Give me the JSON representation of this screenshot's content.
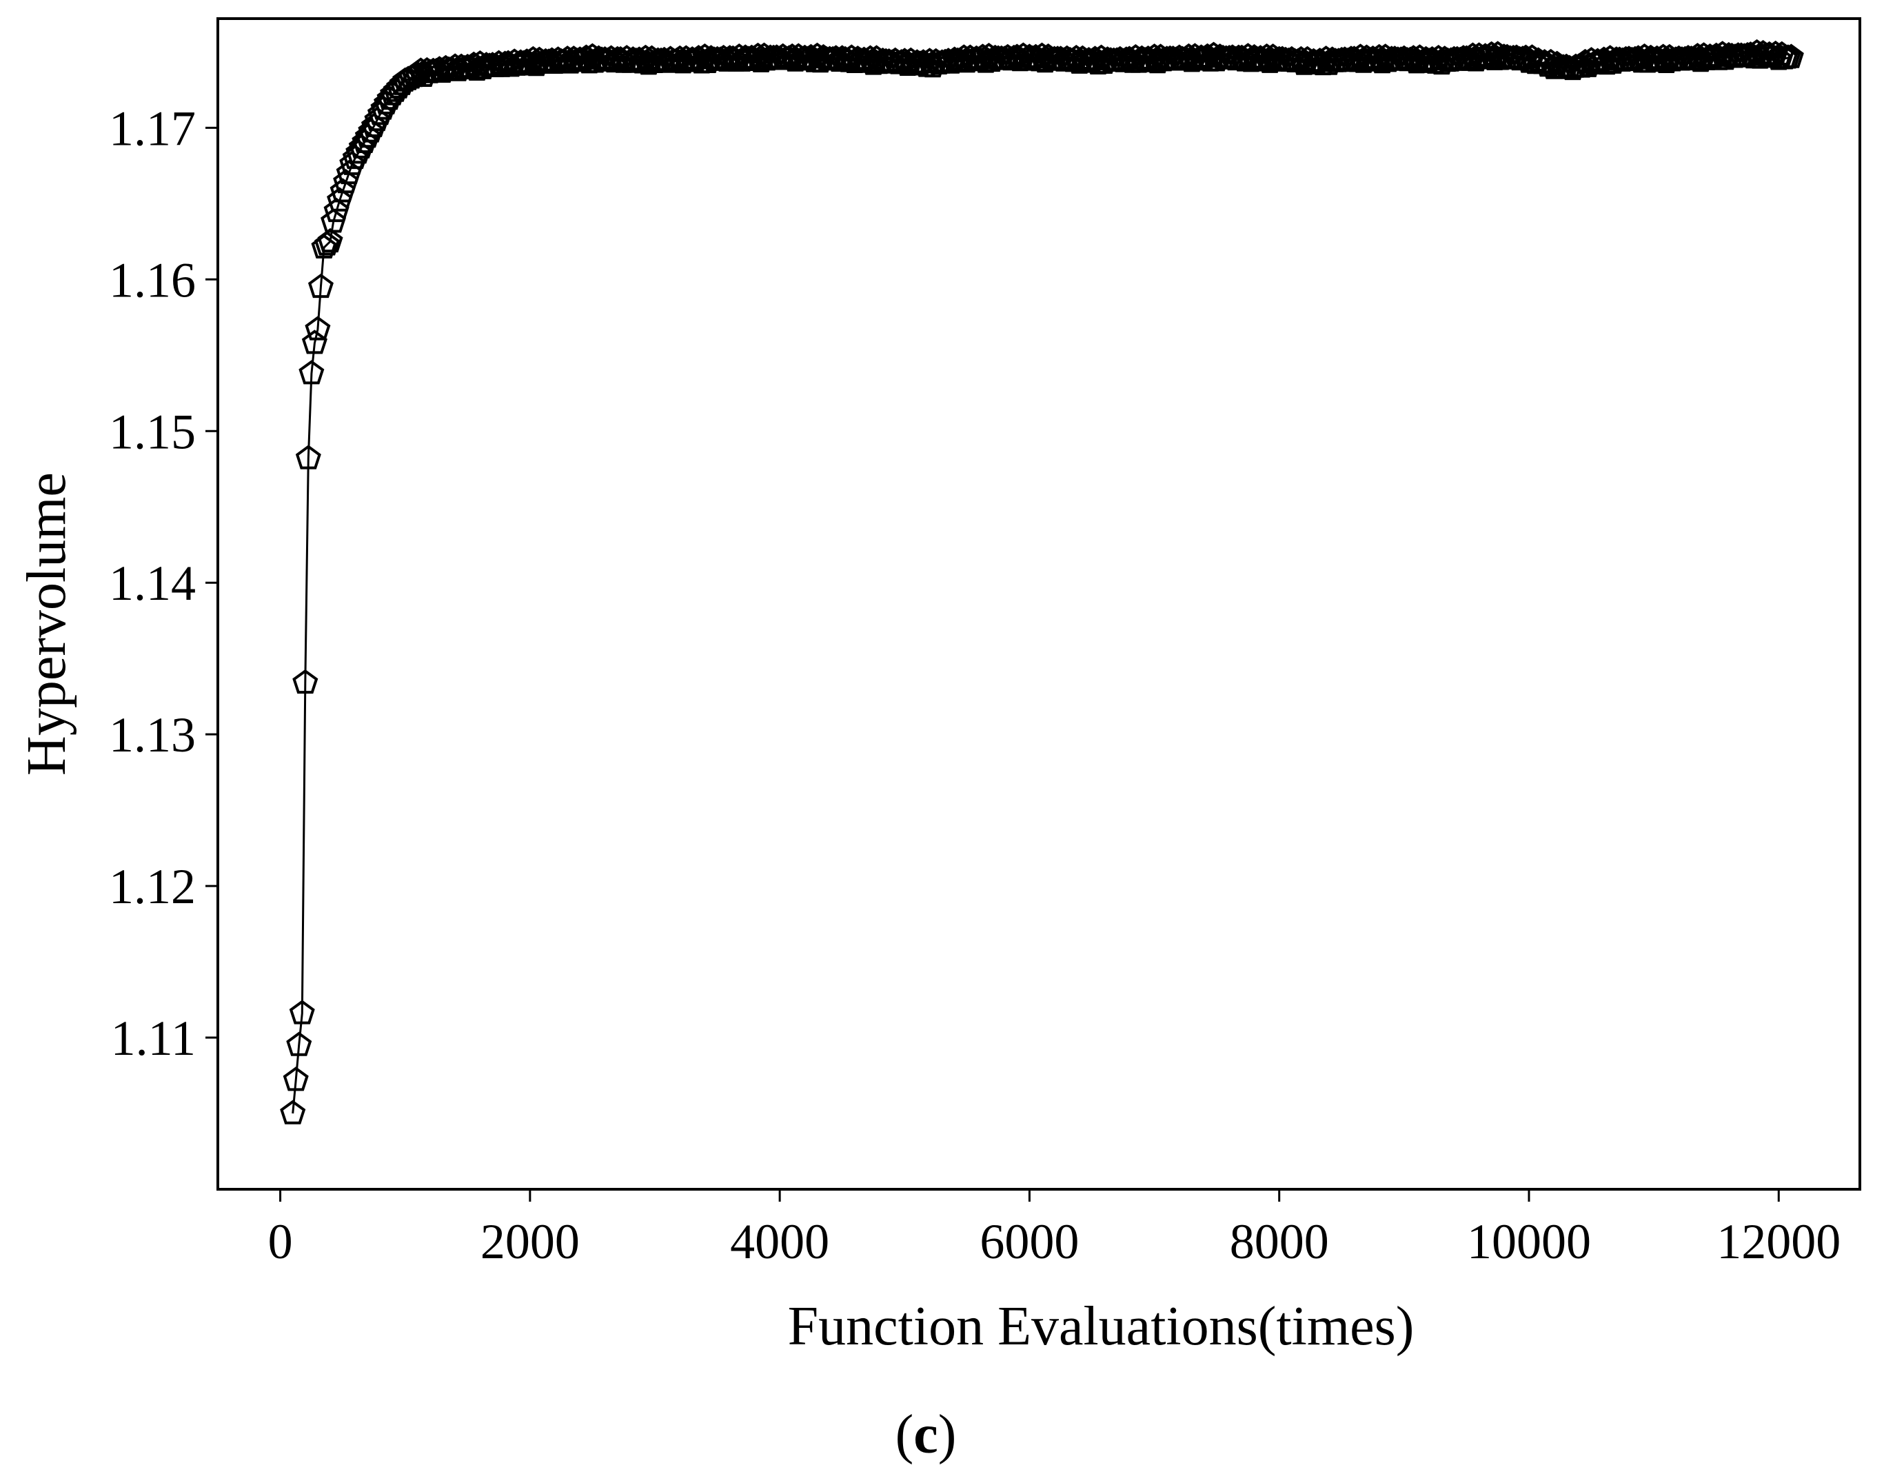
{
  "chart_data": {
    "type": "line",
    "title": "",
    "xlabel": "Function Evaluations(times)",
    "ylabel": "Hypervolume",
    "panel_label": {
      "open": "(",
      "letter": "c",
      "close": ")"
    },
    "xlim": [
      -500,
      12650
    ],
    "ylim": [
      1.1,
      1.1772
    ],
    "xticks": [
      0,
      2000,
      4000,
      6000,
      8000,
      10000,
      12000
    ],
    "xtick_labels": [
      "0",
      "2000",
      "4000",
      "6000",
      "8000",
      "10000",
      "12000"
    ],
    "yticks": [
      1.11,
      1.12,
      1.13,
      1.14,
      1.15,
      1.16,
      1.17
    ],
    "ytick_labels": [
      "1.11",
      "1.12",
      "1.13",
      "1.14",
      "1.15",
      "1.16",
      "1.17"
    ],
    "grid": false,
    "marker": "pentagon-open",
    "line_color": "#000000",
    "series": [
      {
        "x_start": 100,
        "x_step": 25,
        "x_end": 12100,
        "early_points": [
          [
            100,
            1.105
          ],
          [
            125,
            1.1072
          ],
          [
            150,
            1.1095
          ],
          [
            175,
            1.1116
          ],
          [
            200,
            1.1334
          ],
          [
            225,
            1.1482
          ],
          [
            250,
            1.1538
          ],
          [
            275,
            1.1558
          ],
          [
            300,
            1.1567
          ],
          [
            325,
            1.1595
          ],
          [
            350,
            1.1621
          ],
          [
            375,
            1.1623
          ],
          [
            400,
            1.1625
          ],
          [
            425,
            1.1638
          ],
          [
            450,
            1.1645
          ],
          [
            475,
            1.1652
          ],
          [
            500,
            1.1658
          ],
          [
            525,
            1.1664
          ],
          [
            550,
            1.167
          ],
          [
            575,
            1.1676
          ],
          [
            600,
            1.168
          ],
          [
            650,
            1.1687
          ],
          [
            700,
            1.1694
          ],
          [
            750,
            1.1701
          ],
          [
            800,
            1.1709
          ],
          [
            850,
            1.1716
          ],
          [
            900,
            1.1722
          ],
          [
            1000,
            1.1731
          ],
          [
            1100,
            1.1735
          ],
          [
            1200,
            1.1737
          ],
          [
            1400,
            1.1739
          ],
          [
            1700,
            1.1741
          ],
          [
            2000,
            1.1743
          ],
          [
            2500,
            1.1745
          ],
          [
            3000,
            1.1744
          ],
          [
            3500,
            1.1745
          ],
          [
            4000,
            1.1746
          ],
          [
            4500,
            1.1745
          ],
          [
            5000,
            1.1743
          ],
          [
            5200,
            1.1742
          ],
          [
            5500,
            1.1745
          ],
          [
            6000,
            1.1746
          ],
          [
            6500,
            1.1744
          ],
          [
            7000,
            1.1745
          ],
          [
            7500,
            1.1746
          ],
          [
            8000,
            1.1745
          ],
          [
            8300,
            1.1743
          ],
          [
            8600,
            1.1745
          ],
          [
            9000,
            1.1745
          ],
          [
            9300,
            1.1744
          ],
          [
            9700,
            1.1747
          ],
          [
            10000,
            1.1745
          ],
          [
            10200,
            1.1741
          ],
          [
            10350,
            1.1739
          ],
          [
            10500,
            1.1743
          ],
          [
            10800,
            1.1745
          ],
          [
            11200,
            1.1745
          ],
          [
            11600,
            1.1747
          ],
          [
            11900,
            1.1748
          ],
          [
            12100,
            1.1746
          ]
        ]
      }
    ]
  }
}
